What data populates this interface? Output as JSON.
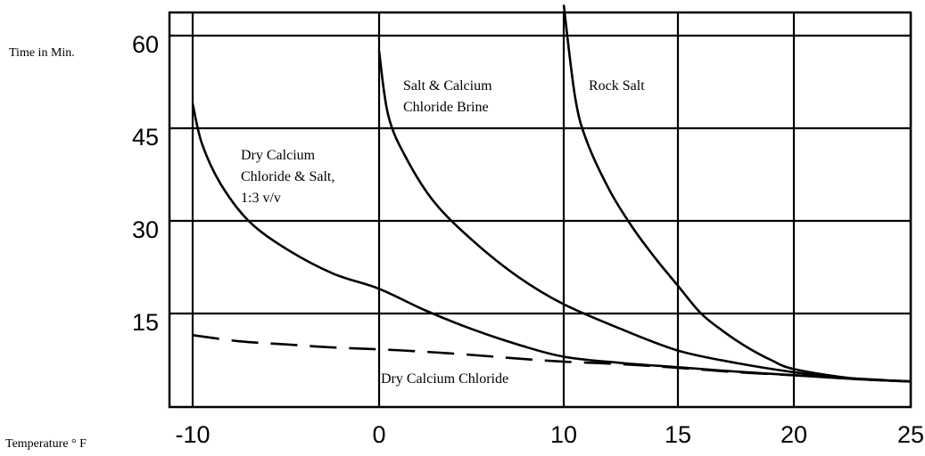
{
  "chart_data": {
    "type": "line",
    "ylabel": "Time in Min.",
    "xlabel": "Temperature ° F",
    "x_ticks": [
      "-10",
      "0",
      "10",
      "15",
      "20",
      "25"
    ],
    "y_ticks": [
      "60",
      "45",
      "30",
      "15"
    ],
    "grid": true,
    "series": [
      {
        "name": "Dry Calcium Chloride & Salt, 1:3 v/v",
        "style": "solid",
        "points": [
          [
            -10,
            49
          ],
          [
            -9.5,
            42.5
          ],
          [
            -8.5,
            36
          ],
          [
            -7,
            30
          ],
          [
            -5,
            25.5
          ],
          [
            -2.5,
            21.5
          ],
          [
            0,
            19
          ],
          [
            2.5,
            15.5
          ],
          [
            5,
            12.5
          ],
          [
            7.5,
            10
          ],
          [
            10,
            8
          ],
          [
            12.5,
            7
          ],
          [
            15,
            6.3
          ],
          [
            17.5,
            5.6
          ],
          [
            20,
            5
          ],
          [
            22.5,
            4.4
          ],
          [
            25,
            4
          ]
        ]
      },
      {
        "name": "Salt & Calcium Chloride Brine",
        "style": "solid",
        "points": [
          [
            0,
            57.5
          ],
          [
            0.5,
            47
          ],
          [
            1.5,
            40
          ],
          [
            3,
            33
          ],
          [
            5,
            27
          ],
          [
            7.5,
            21
          ],
          [
            10,
            16.5
          ],
          [
            12.5,
            12.5
          ],
          [
            15,
            9
          ],
          [
            17.5,
            7
          ],
          [
            20,
            5.5
          ],
          [
            22.5,
            4.5
          ],
          [
            25,
            4
          ]
        ]
      },
      {
        "name": "Rock Salt",
        "style": "solid",
        "points": [
          [
            10,
            65
          ],
          [
            10.5,
            50
          ],
          [
            11,
            43
          ],
          [
            12,
            35
          ],
          [
            13,
            29
          ],
          [
            14,
            24
          ],
          [
            15,
            19.5
          ],
          [
            16,
            15
          ],
          [
            17,
            12
          ],
          [
            18,
            9.5
          ],
          [
            19,
            7.5
          ],
          [
            20,
            6
          ],
          [
            22.5,
            4.5
          ],
          [
            25,
            4
          ]
        ]
      },
      {
        "name": "Dry Calcium Chloride",
        "style": "dashed",
        "points": [
          [
            -10,
            11.5
          ],
          [
            -7.5,
            10.5
          ],
          [
            -5,
            10
          ],
          [
            -2.5,
            9.5
          ],
          [
            0,
            9.2
          ],
          [
            2.5,
            8.8
          ],
          [
            5,
            8.3
          ],
          [
            7.5,
            7.7
          ],
          [
            10,
            7.2
          ],
          [
            12.5,
            6.8
          ],
          [
            15,
            6.2
          ],
          [
            17.5,
            5.5
          ],
          [
            20,
            5
          ],
          [
            22.5,
            4.5
          ],
          [
            25,
            4
          ]
        ]
      }
    ]
  }
}
